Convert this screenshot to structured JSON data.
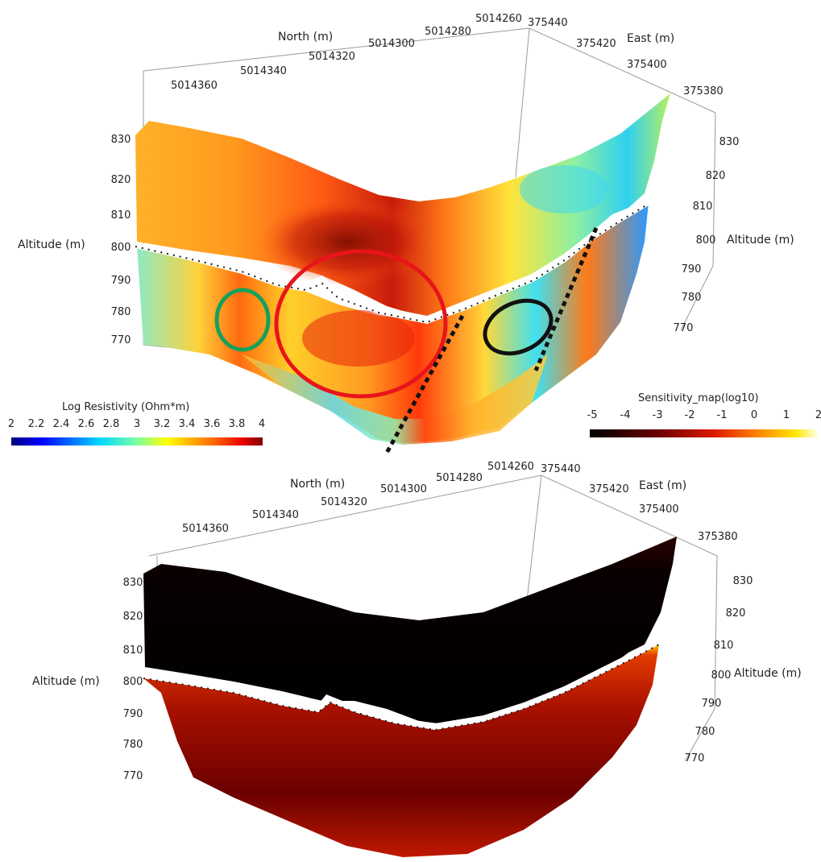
{
  "chart_data": [
    {
      "type": "heatmap",
      "title": "",
      "colorbar": {
        "title": "Log Resistivity (Ohm*m)",
        "ticks": [
          "2",
          "2.2",
          "2.4",
          "2.6",
          "2.8",
          "3",
          "3.2",
          "3.4",
          "3.6",
          "3.8",
          "4"
        ],
        "range": [
          2,
          4
        ],
        "colormap": "jet"
      },
      "axes": {
        "north": {
          "label": "North (m)",
          "ticks": [
            "5014360",
            "5014340",
            "5014320",
            "5014300",
            "5014280",
            "5014260"
          ]
        },
        "east": {
          "label": "East (m)",
          "ticks": [
            "375440",
            "375420",
            "375400",
            "375380"
          ]
        },
        "altitude_left": {
          "label": "Altitude (m)",
          "ticks": [
            "830",
            "820",
            "810",
            "800",
            "790",
            "780",
            "770"
          ]
        },
        "altitude_right": {
          "label": "Altitude (m)",
          "ticks": [
            "830",
            "820",
            "810",
            "800",
            "790",
            "780",
            "770"
          ]
        }
      },
      "annotations": [
        {
          "shape": "ellipse",
          "color": "#16a05a"
        },
        {
          "shape": "ellipse",
          "color": "#e8141b"
        },
        {
          "shape": "ellipse",
          "color": "#111111"
        },
        {
          "shape": "dotted-line",
          "color": "#111111"
        },
        {
          "shape": "dotted-line",
          "color": "#111111"
        }
      ]
    },
    {
      "type": "heatmap",
      "title": "",
      "colorbar": {
        "title": "Sensitivity_map(log10)",
        "ticks": [
          "-5",
          "-4",
          "-3",
          "-2",
          "-1",
          "0",
          "1",
          "2"
        ],
        "range": [
          -5,
          2
        ],
        "colormap": "black-body"
      },
      "axes": {
        "north": {
          "label": "North (m)",
          "ticks": [
            "5014360",
            "5014340",
            "5014320",
            "5014300",
            "5014280",
            "5014260"
          ]
        },
        "east": {
          "label": "East (m)",
          "ticks": [
            "375440",
            "375420",
            "375400",
            "375380"
          ]
        },
        "altitude_left": {
          "label": "Altitude (m)",
          "ticks": [
            "830",
            "820",
            "810",
            "800",
            "790",
            "780",
            "770"
          ]
        },
        "altitude_right": {
          "label": "Altitude (m)",
          "ticks": [
            "830",
            "820",
            "810",
            "800",
            "790",
            "780",
            "770"
          ]
        }
      }
    }
  ]
}
